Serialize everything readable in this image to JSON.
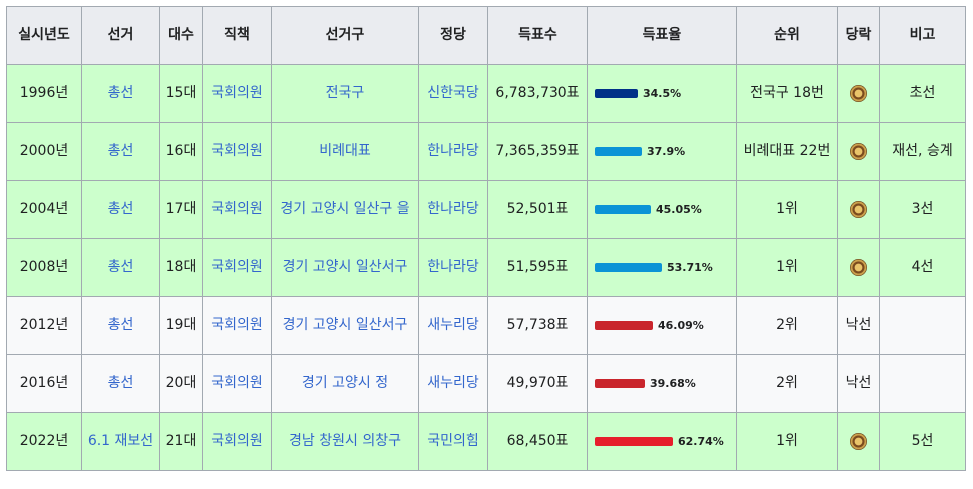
{
  "headers": [
    "실시년도",
    "선거",
    "대수",
    "직책",
    "선거구",
    "정당",
    "득표수",
    "득표율",
    "순위",
    "당락",
    "비고"
  ],
  "rows": [
    {
      "year": "1996년",
      "election": "총선",
      "term": "15대",
      "position": "국회의원",
      "district": "전국구",
      "party": "신한국당",
      "votes": "6,783,730표",
      "rate_label": "34.5%",
      "rate": 34.5,
      "bar_color": "#003087",
      "rank": "전국구 18번",
      "outcome": "win",
      "outcome_icon": "emblem-icon",
      "note": "초선"
    },
    {
      "year": "2000년",
      "election": "총선",
      "term": "16대",
      "position": "국회의원",
      "district": "비례대표",
      "party": "한나라당",
      "votes": "7,365,359표",
      "rate_label": "37.9%",
      "rate": 37.9,
      "bar_color": "#0b93d6",
      "rank": "비례대표 22번",
      "outcome": "win",
      "outcome_icon": "emblem-icon",
      "note": "재선, 승계"
    },
    {
      "year": "2004년",
      "election": "총선",
      "term": "17대",
      "position": "국회의원",
      "district": "경기 고양시 일산구 을",
      "party": "한나라당",
      "votes": "52,501표",
      "rate_label": "45.05%",
      "rate": 45.05,
      "bar_color": "#0b93d6",
      "rank": "1위",
      "outcome": "win",
      "outcome_icon": "emblem-icon",
      "note": "3선"
    },
    {
      "year": "2008년",
      "election": "총선",
      "term": "18대",
      "position": "국회의원",
      "district": "경기 고양시 일산서구",
      "party": "한나라당",
      "votes": "51,595표",
      "rate_label": "53.71%",
      "rate": 53.71,
      "bar_color": "#0b93d6",
      "rank": "1위",
      "outcome": "win",
      "outcome_icon": "emblem-icon",
      "note": "4선"
    },
    {
      "year": "2012년",
      "election": "총선",
      "term": "19대",
      "position": "국회의원",
      "district": "경기 고양시 일산서구",
      "party": "새누리당",
      "votes": "57,738표",
      "rate_label": "46.09%",
      "rate": 46.09,
      "bar_color": "#c9252c",
      "rank": "2위",
      "outcome": "lose",
      "outcome_text": "낙선",
      "note": ""
    },
    {
      "year": "2016년",
      "election": "총선",
      "term": "20대",
      "position": "국회의원",
      "district": "경기 고양시 정",
      "party": "새누리당",
      "votes": "49,970표",
      "rate_label": "39.68%",
      "rate": 39.68,
      "bar_color": "#c9252c",
      "rank": "2위",
      "outcome": "lose",
      "outcome_text": "낙선",
      "note": ""
    },
    {
      "year": "2022년",
      "election": "6.1 재보선",
      "term": "21대",
      "position": "국회의원",
      "district": "경남 창원시 의창구",
      "party": "국민의힘",
      "votes": "68,450표",
      "rate_label": "62.74%",
      "rate": 62.74,
      "bar_color": "#e61e2b",
      "rank": "1위",
      "outcome": "win",
      "outcome_icon": "emblem-icon",
      "note": "5선"
    }
  ]
}
